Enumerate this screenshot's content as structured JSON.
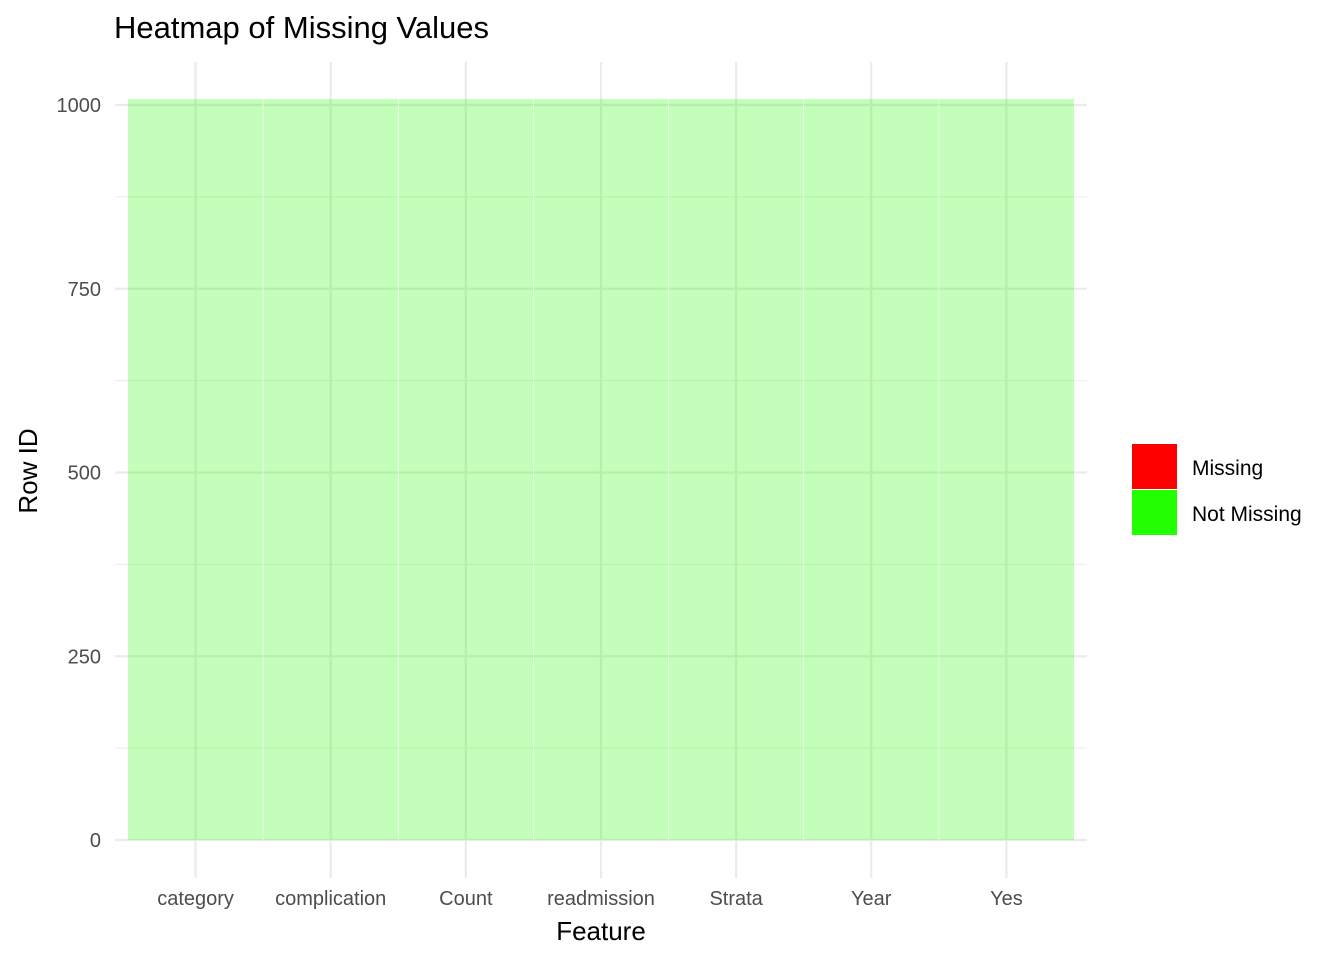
{
  "chart_data": {
    "type": "heatmap",
    "title": "Heatmap of Missing Values",
    "xlabel": "Feature",
    "ylabel": "Row ID",
    "categories": [
      "category",
      "complication",
      "Count",
      "readmission",
      "Strata",
      "Year",
      "Yes"
    ],
    "rows": 1000,
    "ylim": [
      0,
      1000
    ],
    "yticks": [
      0,
      250,
      500,
      750,
      1000
    ],
    "series": [
      {
        "name": "Missing",
        "color": "#FF0000",
        "count_per_feature": [
          0,
          0,
          0,
          0,
          0,
          0,
          0
        ]
      },
      {
        "name": "Not Missing",
        "color": "#22FF00",
        "count_per_feature": [
          1000,
          1000,
          1000,
          1000,
          1000,
          1000,
          1000
        ]
      }
    ],
    "cell_opacity": 0.27,
    "grid": true,
    "legend_position": "right"
  }
}
